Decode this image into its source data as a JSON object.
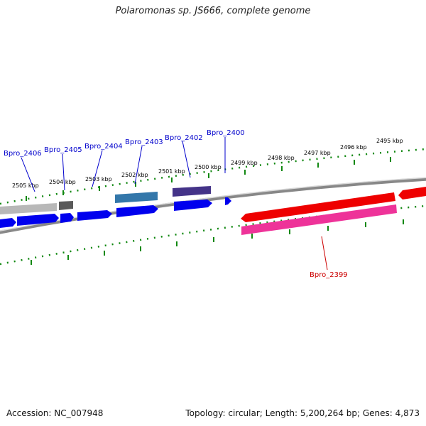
{
  "title": "Polaromonas sp. JS666, complete genome",
  "footer": {
    "accession": "Accession: NC_007948",
    "summary": "Topology: circular; Length: 5,200,264 bp; Genes: 4,873"
  },
  "scale_labels": [
    "2505 kbp",
    "2504 kbp",
    "2503 kbp",
    "2502 kbp",
    "2501 kbp",
    "2500 kbp",
    "2499 kbp",
    "2498 kbp",
    "2497 kbp",
    "2496 kbp",
    "2495 kbp"
  ],
  "gene_labels": [
    {
      "text": "Bpro_2406",
      "color": "#0000cc"
    },
    {
      "text": "Bpro_2405",
      "color": "#0000cc"
    },
    {
      "text": "Bpro_2404",
      "color": "#0000cc"
    },
    {
      "text": "Bpro_2403",
      "color": "#0000cc"
    },
    {
      "text": "Bpro_2402",
      "color": "#0000cc"
    },
    {
      "text": "Bpro_2400",
      "color": "#0000cc"
    },
    {
      "text": "Bpro_2399",
      "color": "#cc0000"
    }
  ],
  "colors": {
    "forward_gene": "#0000ee",
    "reverse_gene": "#ee0000",
    "reverse_gene_secondary": "#ee3399",
    "tick": "#118811",
    "backbone": "#888888"
  }
}
